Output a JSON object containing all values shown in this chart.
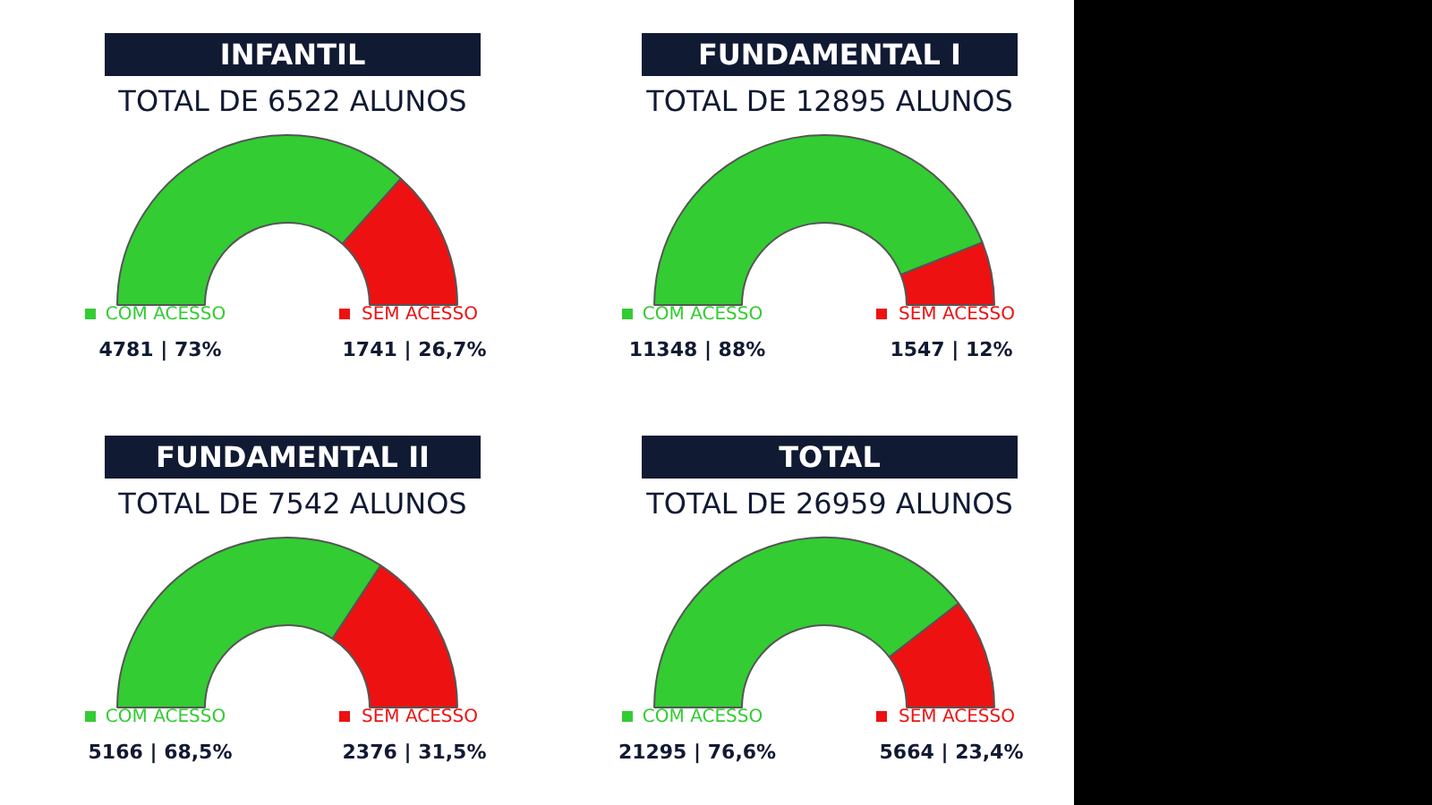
{
  "chart_data": [
    {
      "type": "donut",
      "title": "INFANTIL",
      "subtitle": "TOTAL DE 6522 ALUNOS",
      "categories": [
        "COM ACESSO",
        "SEM ACESSO"
      ],
      "values": [
        4781,
        1741
      ],
      "legend": "bottom",
      "colors": [
        "#33cc33",
        "#ee1111"
      ],
      "value_labels": [
        "4781 | 73%",
        "1741 | 26,7%"
      ]
    },
    {
      "type": "donut",
      "title": "FUNDAMENTAL I",
      "subtitle": "TOTAL DE 12895 ALUNOS",
      "categories": [
        "COM ACESSO",
        "SEM ACESSO"
      ],
      "values": [
        11348,
        1547
      ],
      "legend": "bottom",
      "colors": [
        "#33cc33",
        "#ee1111"
      ],
      "value_labels": [
        "11348 | 88%",
        "1547 | 12%"
      ]
    },
    {
      "type": "donut",
      "title": "FUNDAMENTAL II",
      "subtitle": "TOTAL DE 7542 ALUNOS",
      "categories": [
        "COM ACESSO",
        "SEM ACESSO"
      ],
      "values": [
        5166,
        2376
      ],
      "legend": "bottom",
      "colors": [
        "#33cc33",
        "#ee1111"
      ],
      "value_labels": [
        "5166 | 68,5%",
        "2376 | 31,5%"
      ]
    },
    {
      "type": "donut",
      "title": "TOTAL",
      "subtitle": "TOTAL DE 26959 ALUNOS",
      "categories": [
        "COM ACESSO",
        "SEM ACESSO"
      ],
      "values": [
        21295,
        5664
      ],
      "legend": "bottom",
      "colors": [
        "#33cc33",
        "#ee1111"
      ],
      "value_labels": [
        "21295 | 76,6%",
        "5664 | 23,4%"
      ]
    }
  ]
}
